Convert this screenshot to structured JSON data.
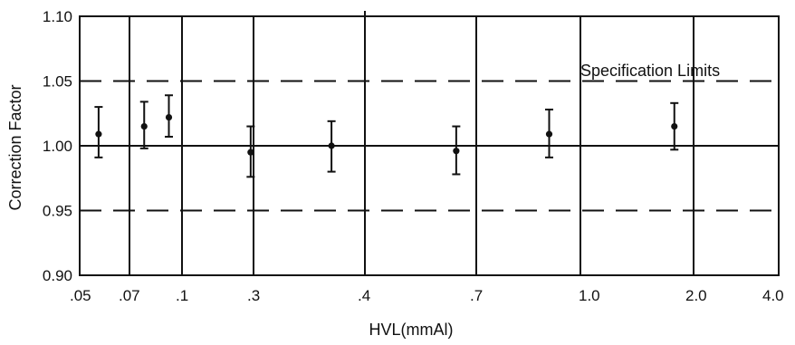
{
  "chart_data": {
    "type": "scatter",
    "title": "",
    "xlabel": "HVL(mmAl)",
    "ylabel": "Correction Factor",
    "x_tick_labels": [
      ".05",
      ".07",
      ".1",
      ".3",
      ".4",
      ".7",
      "1.0",
      "2.0",
      "4.0"
    ],
    "y_ticks": [
      0.9,
      0.95,
      1.0,
      1.05,
      1.1
    ],
    "y_tick_labels": [
      "0.90",
      "0.95",
      "1.00",
      "1.05",
      "1.10"
    ],
    "ylim": [
      0.9,
      1.1
    ],
    "grid": "vertical lines at x ticks",
    "reference_lines": [
      {
        "value": 1.05,
        "style": "dashed"
      },
      {
        "value": 1.0,
        "style": "solid"
      },
      {
        "value": 0.95,
        "style": "dashed"
      }
    ],
    "annotation": "Specification Limits",
    "points": [
      {
        "x_pos": 0.38,
        "y": 1.009,
        "err_low": 0.991,
        "err_high": 1.03
      },
      {
        "x_pos": 1.28,
        "y": 1.015,
        "err_low": 0.998,
        "err_high": 1.034
      },
      {
        "x_pos": 1.75,
        "y": 1.022,
        "err_low": 1.007,
        "err_high": 1.039
      },
      {
        "x_pos": 2.96,
        "y": 0.995,
        "err_low": 0.976,
        "err_high": 1.015
      },
      {
        "x_pos": 3.7,
        "y": 1.0,
        "err_low": 0.98,
        "err_high": 1.019
      },
      {
        "x_pos": 4.82,
        "y": 0.996,
        "err_low": 0.978,
        "err_high": 1.015
      },
      {
        "x_pos": 5.7,
        "y": 1.009,
        "err_low": 0.991,
        "err_high": 1.028
      },
      {
        "x_pos": 6.83,
        "y": 1.015,
        "err_low": 0.997,
        "err_high": 1.033
      }
    ]
  }
}
